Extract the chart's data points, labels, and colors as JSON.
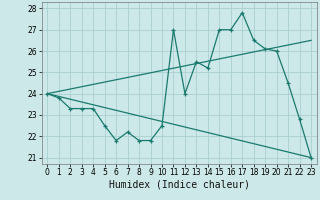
{
  "xlabel": "Humidex (Indice chaleur)",
  "xlim": [
    -0.5,
    23.5
  ],
  "ylim": [
    20.7,
    28.3
  ],
  "yticks": [
    21,
    22,
    23,
    24,
    25,
    26,
    27,
    28
  ],
  "xticks": [
    0,
    1,
    2,
    3,
    4,
    5,
    6,
    7,
    8,
    9,
    10,
    11,
    12,
    13,
    14,
    15,
    16,
    17,
    18,
    19,
    20,
    21,
    22,
    23
  ],
  "background_color": "#cce8e8",
  "grid_color": "#aad0d0",
  "line_color": "#1a7a6e",
  "line1_x": [
    0,
    1,
    2,
    3,
    4,
    5,
    6,
    7,
    8,
    9,
    10,
    11,
    12,
    13,
    14,
    15,
    16,
    17,
    18,
    19,
    20,
    21,
    22,
    23
  ],
  "line1_y": [
    24.0,
    23.8,
    23.3,
    23.3,
    23.3,
    22.5,
    21.8,
    22.2,
    21.8,
    21.8,
    22.5,
    27.0,
    24.0,
    25.5,
    25.2,
    27.0,
    27.0,
    27.8,
    26.5,
    26.1,
    26.0,
    24.5,
    22.8,
    21.0
  ],
  "line2_x": [
    0,
    23
  ],
  "line2_y": [
    24.0,
    26.5
  ],
  "line3_x": [
    0,
    23
  ],
  "line3_y": [
    24.0,
    21.0
  ],
  "tick_fontsize": 5.5,
  "xlabel_fontsize": 7.0
}
